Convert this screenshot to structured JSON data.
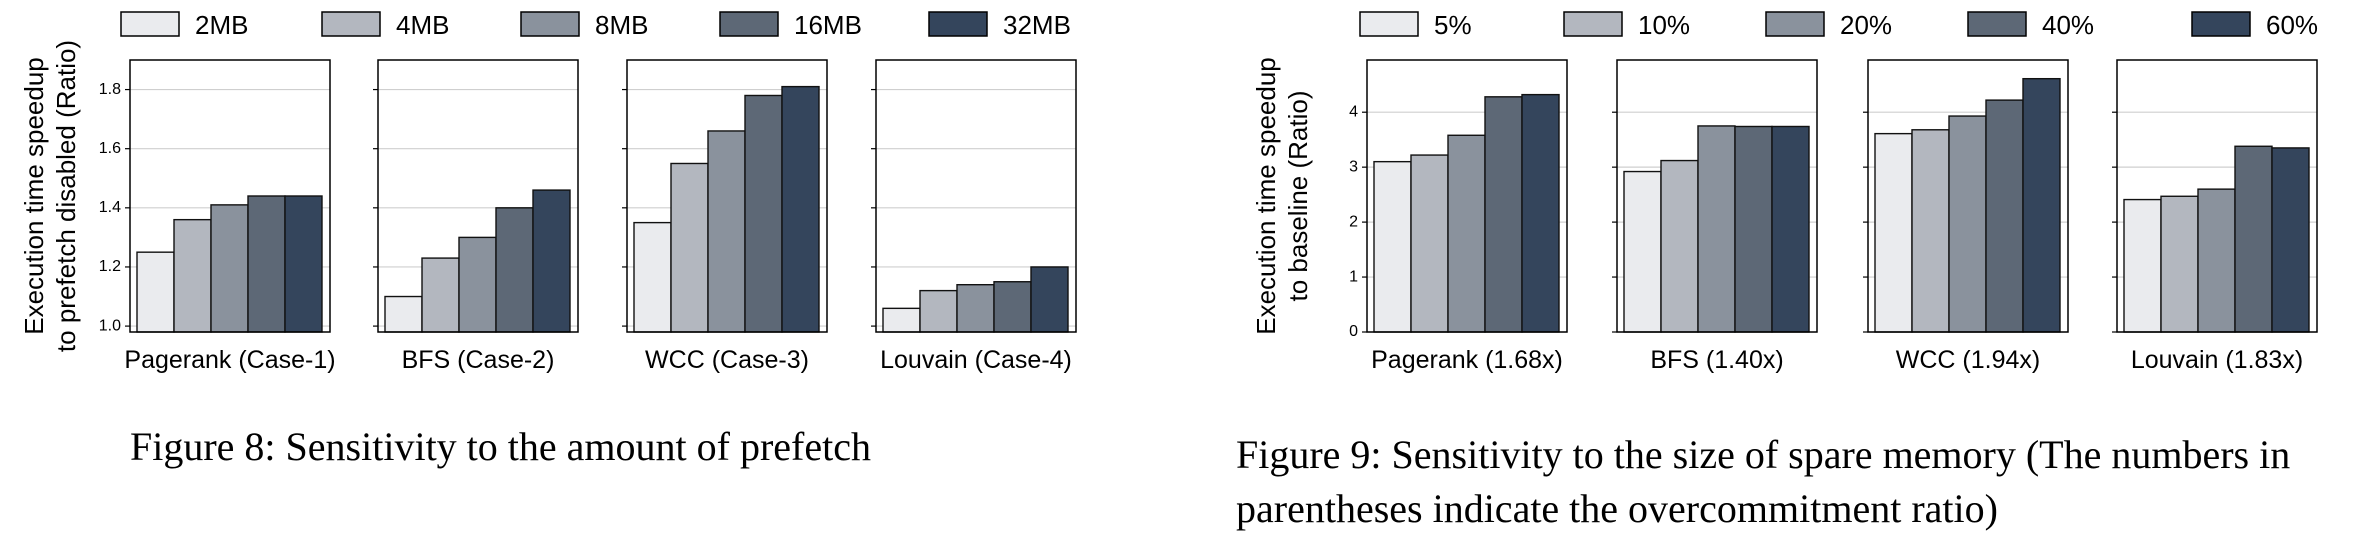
{
  "figures": [
    {
      "caption": "Figure 8: Sensitivity to the amount of prefetch",
      "ylabel_lines": [
        "Execution time speedup",
        "to prefetch disabled (Ratio)"
      ]
    },
    {
      "caption": "Figure 9: Sensitivity to the size of spare memory (The numbers in parentheses indicate the overcommitment ratio)",
      "ylabel_lines": [
        "Execution time speedup",
        "to baseline (Ratio)"
      ]
    }
  ],
  "chart_data": [
    {
      "type": "bar",
      "title": "Figure 8: Sensitivity to the amount of prefetch",
      "ylabel": "Execution time speedup to prefetch disabled (Ratio)",
      "legend": [
        "2MB",
        "4MB",
        "8MB",
        "16MB",
        "32MB"
      ],
      "legend_position": "top",
      "colors": [
        "#eaebee",
        "#b3b7bf",
        "#8a929d",
        "#5d6876",
        "#34455c"
      ],
      "ylim": [
        0.98,
        1.9
      ],
      "yticks": [
        "1.0",
        "1.2",
        "1.4",
        "1.6",
        "1.8"
      ],
      "yticks_values": [
        1.0,
        1.2,
        1.4,
        1.6,
        1.8
      ],
      "grid": "horizontal",
      "panels": [
        {
          "label": "Pagerank (Case-1)",
          "values": [
            1.25,
            1.36,
            1.41,
            1.44,
            1.44
          ]
        },
        {
          "label": "BFS (Case-2)",
          "values": [
            1.1,
            1.23,
            1.3,
            1.4,
            1.46
          ]
        },
        {
          "label": "WCC (Case-3)",
          "values": [
            1.35,
            1.55,
            1.66,
            1.78,
            1.81
          ]
        },
        {
          "label": "Louvain (Case-4)",
          "values": [
            1.06,
            1.12,
            1.14,
            1.15,
            1.2
          ]
        }
      ]
    },
    {
      "type": "bar",
      "title": "Figure 9: Sensitivity to the size of spare memory",
      "ylabel": "Execution time speedup to baseline (Ratio)",
      "legend": [
        "5%",
        "10%",
        "20%",
        "40%",
        "60%"
      ],
      "legend_position": "top",
      "colors": [
        "#eaebee",
        "#b3b7bf",
        "#8a929d",
        "#5d6876",
        "#34455c"
      ],
      "ylim": [
        0,
        4.95
      ],
      "yticks": [
        "0",
        "1",
        "2",
        "3",
        "4"
      ],
      "yticks_values": [
        0,
        1,
        2,
        3,
        4
      ],
      "grid": "horizontal",
      "panels": [
        {
          "label": "Pagerank (1.68x)",
          "values": [
            3.1,
            3.22,
            3.58,
            4.28,
            4.32
          ]
        },
        {
          "label": "BFS (1.40x)",
          "values": [
            2.92,
            3.12,
            3.75,
            3.74,
            3.74
          ]
        },
        {
          "label": "WCC (1.94x)",
          "values": [
            3.61,
            3.68,
            3.93,
            4.22,
            4.61
          ]
        },
        {
          "label": "Louvain (1.83x)",
          "values": [
            2.41,
            2.47,
            2.6,
            3.38,
            3.35
          ]
        }
      ]
    }
  ]
}
